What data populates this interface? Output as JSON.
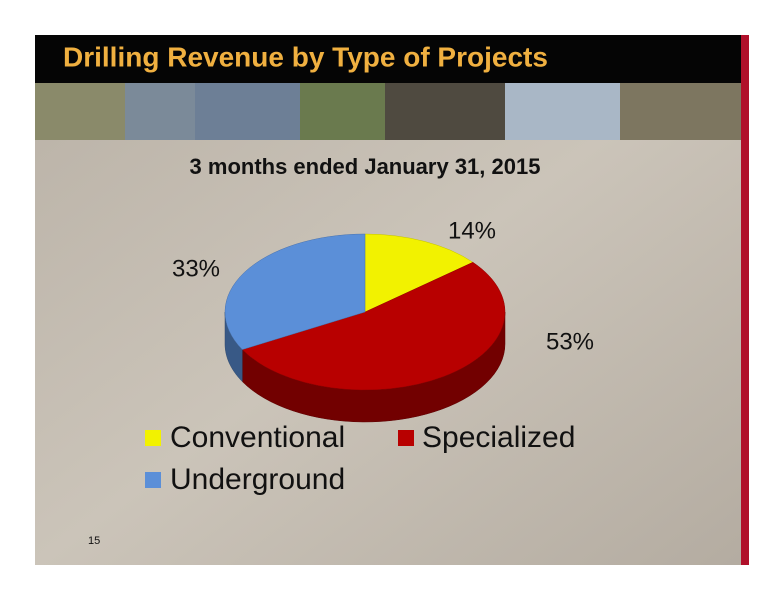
{
  "chart_data": {
    "type": "pie",
    "title": "Drilling Revenue by Type of Projects",
    "subtitle": "3 months ended  January 31, 2015",
    "categories": [
      "Conventional",
      "Specialized",
      "Underground"
    ],
    "values": [
      14,
      53,
      33
    ],
    "value_labels": [
      "14%",
      "53%",
      "33%"
    ],
    "colors": [
      "#f2f200",
      "#b80000",
      "#5b8fd8"
    ]
  },
  "page_number": "15"
}
